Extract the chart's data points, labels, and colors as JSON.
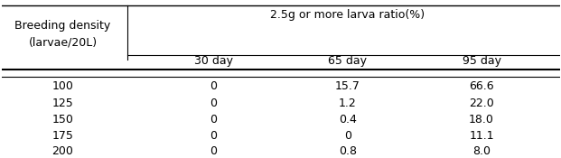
{
  "col0_header_line1": "Breeding density",
  "col0_header_line2": "(larvae/20L)",
  "main_header": "2.5g or more larva ratio(%)",
  "sub_headers": [
    "30 day",
    "65 day",
    "95 day"
  ],
  "rows": [
    [
      "100",
      "0",
      "15.7",
      "66.6"
    ],
    [
      "125",
      "0",
      "1.2",
      "22.0"
    ],
    [
      "150",
      "0",
      "0.4",
      "18.0"
    ],
    [
      "175",
      "0",
      "0",
      "11.1"
    ],
    [
      "200",
      "0",
      "0.8",
      "8.0"
    ]
  ],
  "bg_color": "#ffffff",
  "text_color": "#000000",
  "font_size": 9,
  "header_font_size": 9
}
